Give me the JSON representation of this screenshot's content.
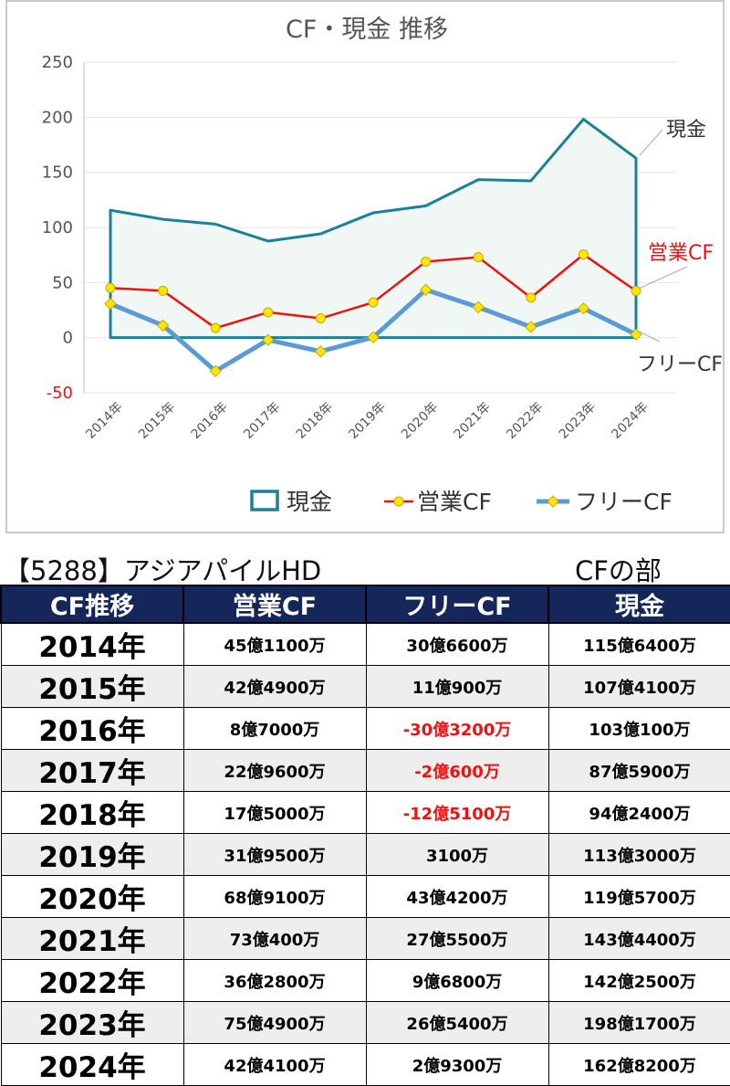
{
  "chart_data": {
    "type": "line",
    "title": "CF・現金 推移",
    "categories": [
      "2014年",
      "2015年",
      "2016年",
      "2017年",
      "2018年",
      "2019年",
      "2020年",
      "2021年",
      "2022年",
      "2023年",
      "2024年"
    ],
    "y_ticks": [
      "250",
      "200",
      "150",
      "100",
      "50",
      "0",
      "-50"
    ],
    "ylim": [
      -50,
      250
    ],
    "grid": true,
    "legend_position": "bottom",
    "series": [
      {
        "name": "現金",
        "color": "#1a8199",
        "values": [
          115.6,
          107.4,
          103.0,
          87.6,
          94.2,
          113.3,
          119.6,
          143.4,
          142.3,
          198.2,
          162.8
        ]
      },
      {
        "name": "営業CF",
        "color": "#ee1111",
        "values": [
          45.1,
          42.5,
          8.7,
          23.0,
          17.5,
          32.0,
          68.9,
          73.0,
          36.3,
          75.5,
          42.4
        ]
      },
      {
        "name": "フリーCF",
        "color": "#5b9bd5",
        "values": [
          30.7,
          11.1,
          -30.3,
          -2.1,
          -12.5,
          0.3,
          43.4,
          27.6,
          9.7,
          26.5,
          2.9
        ]
      }
    ],
    "end_labels": [
      {
        "text": "現金",
        "color": "#333333"
      },
      {
        "text": "営業CF",
        "color": "#ee1111"
      },
      {
        "text": "フリーCF",
        "color": "#333333"
      }
    ]
  },
  "header": {
    "company": "【5288】アジアパイルHD",
    "section": "CFの部"
  },
  "table": {
    "columns": [
      "CF推移",
      "営業CF",
      "フリーCF",
      "現金"
    ],
    "rows": [
      {
        "year": "2014年",
        "op": "45億1100万",
        "free": "30億6600万",
        "cash": "115億6400万",
        "free_negative": false
      },
      {
        "year": "2015年",
        "op": "42億4900万",
        "free": "11億900万",
        "cash": "107億4100万",
        "free_negative": false
      },
      {
        "year": "2016年",
        "op": "8億7000万",
        "free": "-30億3200万",
        "cash": "103億100万",
        "free_negative": true
      },
      {
        "year": "2017年",
        "op": "22億9600万",
        "free": "-2億600万",
        "cash": "87億5900万",
        "free_negative": true
      },
      {
        "year": "2018年",
        "op": "17億5000万",
        "free": "-12億5100万",
        "cash": "94億2400万",
        "free_negative": true
      },
      {
        "year": "2019年",
        "op": "31億9500万",
        "free": "3100万",
        "cash": "113億3000万",
        "free_negative": false
      },
      {
        "year": "2020年",
        "op": "68億9100万",
        "free": "43億4200万",
        "cash": "119億5700万",
        "free_negative": false
      },
      {
        "year": "2021年",
        "op": "73億400万",
        "free": "27億5500万",
        "cash": "143億4400万",
        "free_negative": false
      },
      {
        "year": "2022年",
        "op": "36億2800万",
        "free": "9億6800万",
        "cash": "142億2500万",
        "free_negative": false
      },
      {
        "year": "2023年",
        "op": "75億4900万",
        "free": "26億5400万",
        "cash": "198億1700万",
        "free_negative": false
      },
      {
        "year": "2024年",
        "op": "42億4100万",
        "free": "2億9300万",
        "cash": "162億8200万",
        "free_negative": false
      }
    ]
  }
}
